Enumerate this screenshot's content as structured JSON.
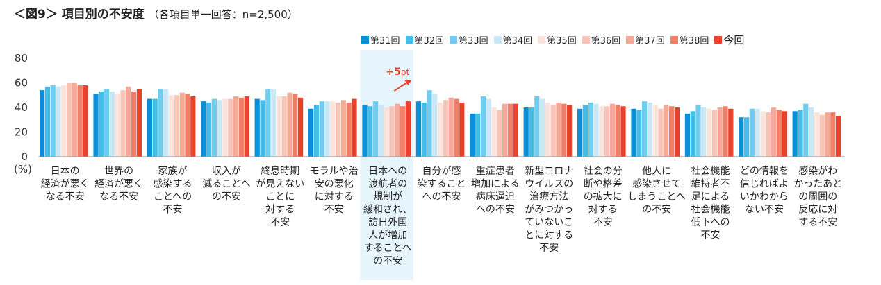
{
  "title": "＜図9＞ 項目別の不安度",
  "subtitle": "（各項目単一回答：n=2,500）",
  "chart_data": {
    "type": "bar",
    "ylim": [
      0,
      80
    ],
    "yticks": [
      "80",
      "60",
      "40",
      "20",
      "0"
    ],
    "yunit": "(%)",
    "legend_position": "top-right",
    "series": [
      {
        "name": "第31回",
        "color": "#0b8fd8",
        "values": [
          54,
          51,
          47,
          45,
          47,
          39,
          42,
          45,
          35,
          40,
          39,
          39,
          35,
          32,
          37
        ]
      },
      {
        "name": "第32回",
        "color": "#45bde9",
        "values": [
          57,
          53,
          47,
          44,
          46,
          42,
          41,
          44,
          35,
          40,
          42,
          38,
          37,
          32,
          38
        ]
      },
      {
        "name": "第33回",
        "color": "#6fcdef",
        "values": [
          58,
          55,
          55,
          47,
          55,
          45,
          45,
          54,
          49,
          49,
          44,
          45,
          42,
          39,
          43
        ]
      },
      {
        "name": "第34回",
        "color": "#c8e8f6",
        "values": [
          57,
          53,
          55,
          46,
          55,
          45,
          42,
          51,
          47,
          47,
          43,
          44,
          40,
          39,
          40
        ]
      },
      {
        "name": "第35回",
        "color": "#fbe3dc",
        "values": [
          58,
          51,
          50,
          47,
          49,
          45,
          40,
          44,
          40,
          44,
          41,
          42,
          39,
          37,
          36
        ]
      },
      {
        "name": "第36回",
        "color": "#f8c4b8",
        "values": [
          60,
          54,
          50,
          47,
          49,
          44,
          41,
          46,
          38,
          42,
          41,
          39,
          38,
          36,
          34
        ]
      },
      {
        "name": "第37回",
        "color": "#f6a997",
        "values": [
          60,
          57,
          52,
          49,
          52,
          46,
          43,
          48,
          43,
          44,
          43,
          42,
          40,
          40,
          36
        ]
      },
      {
        "name": "第38回",
        "color": "#f17e66",
        "values": [
          58,
          53,
          51,
          48,
          51,
          44,
          41,
          47,
          43,
          43,
          42,
          41,
          41,
          38,
          36
        ]
      },
      {
        "name": "今回",
        "color": "#e8412c",
        "values": [
          58,
          55,
          49,
          49,
          48,
          47,
          45,
          44,
          43,
          42,
          41,
          40,
          39,
          37,
          33
        ]
      }
    ],
    "categories": [
      [
        "日本の",
        "経済が悪く",
        "なる不安"
      ],
      [
        "世界の",
        "経済が悪く",
        "なる不安"
      ],
      [
        "家族が",
        "感染する",
        "ことへの",
        "不安"
      ],
      [
        "収入が",
        "減ることへ",
        "の不安"
      ],
      [
        "終息時期",
        "が見えない",
        "ことに",
        "対する",
        "不安"
      ],
      [
        "モラルや治",
        "安の悪化",
        "に対する",
        "不安"
      ],
      [
        "日本への",
        "渡航者の",
        "規制が",
        "緩和され、",
        "訪日外国",
        "人が増加",
        "することへ",
        "の不安"
      ],
      [
        "自分が感",
        "染すること",
        "への不安"
      ],
      [
        "重症患者",
        "増加による",
        "病床逼迫",
        "への不安"
      ],
      [
        "新型コロナ",
        "ウイルスの",
        "治療方法",
        "がみつかっ",
        "ていないこ",
        "とに対する",
        "不安"
      ],
      [
        "社会の分",
        "断や格差",
        "の拡大に",
        "対する",
        "不安"
      ],
      [
        "他人に",
        "感染させて",
        "しまうことへ",
        "の不安"
      ],
      [
        "社会機能",
        "維持者不",
        "足による",
        "社会機能",
        "低下への",
        "不安"
      ],
      [
        "どの情報を",
        "信じればよ",
        "いかわから",
        "ない不安"
      ],
      [
        "感染がわ",
        "かったあと",
        "の周囲の",
        "反応に対",
        "する不安"
      ]
    ],
    "highlight_category_index": 6,
    "highlight_color": "#e6f4fb",
    "annotation": {
      "text_big": "+5",
      "text_small": "pt",
      "color": "#e8412c"
    }
  }
}
